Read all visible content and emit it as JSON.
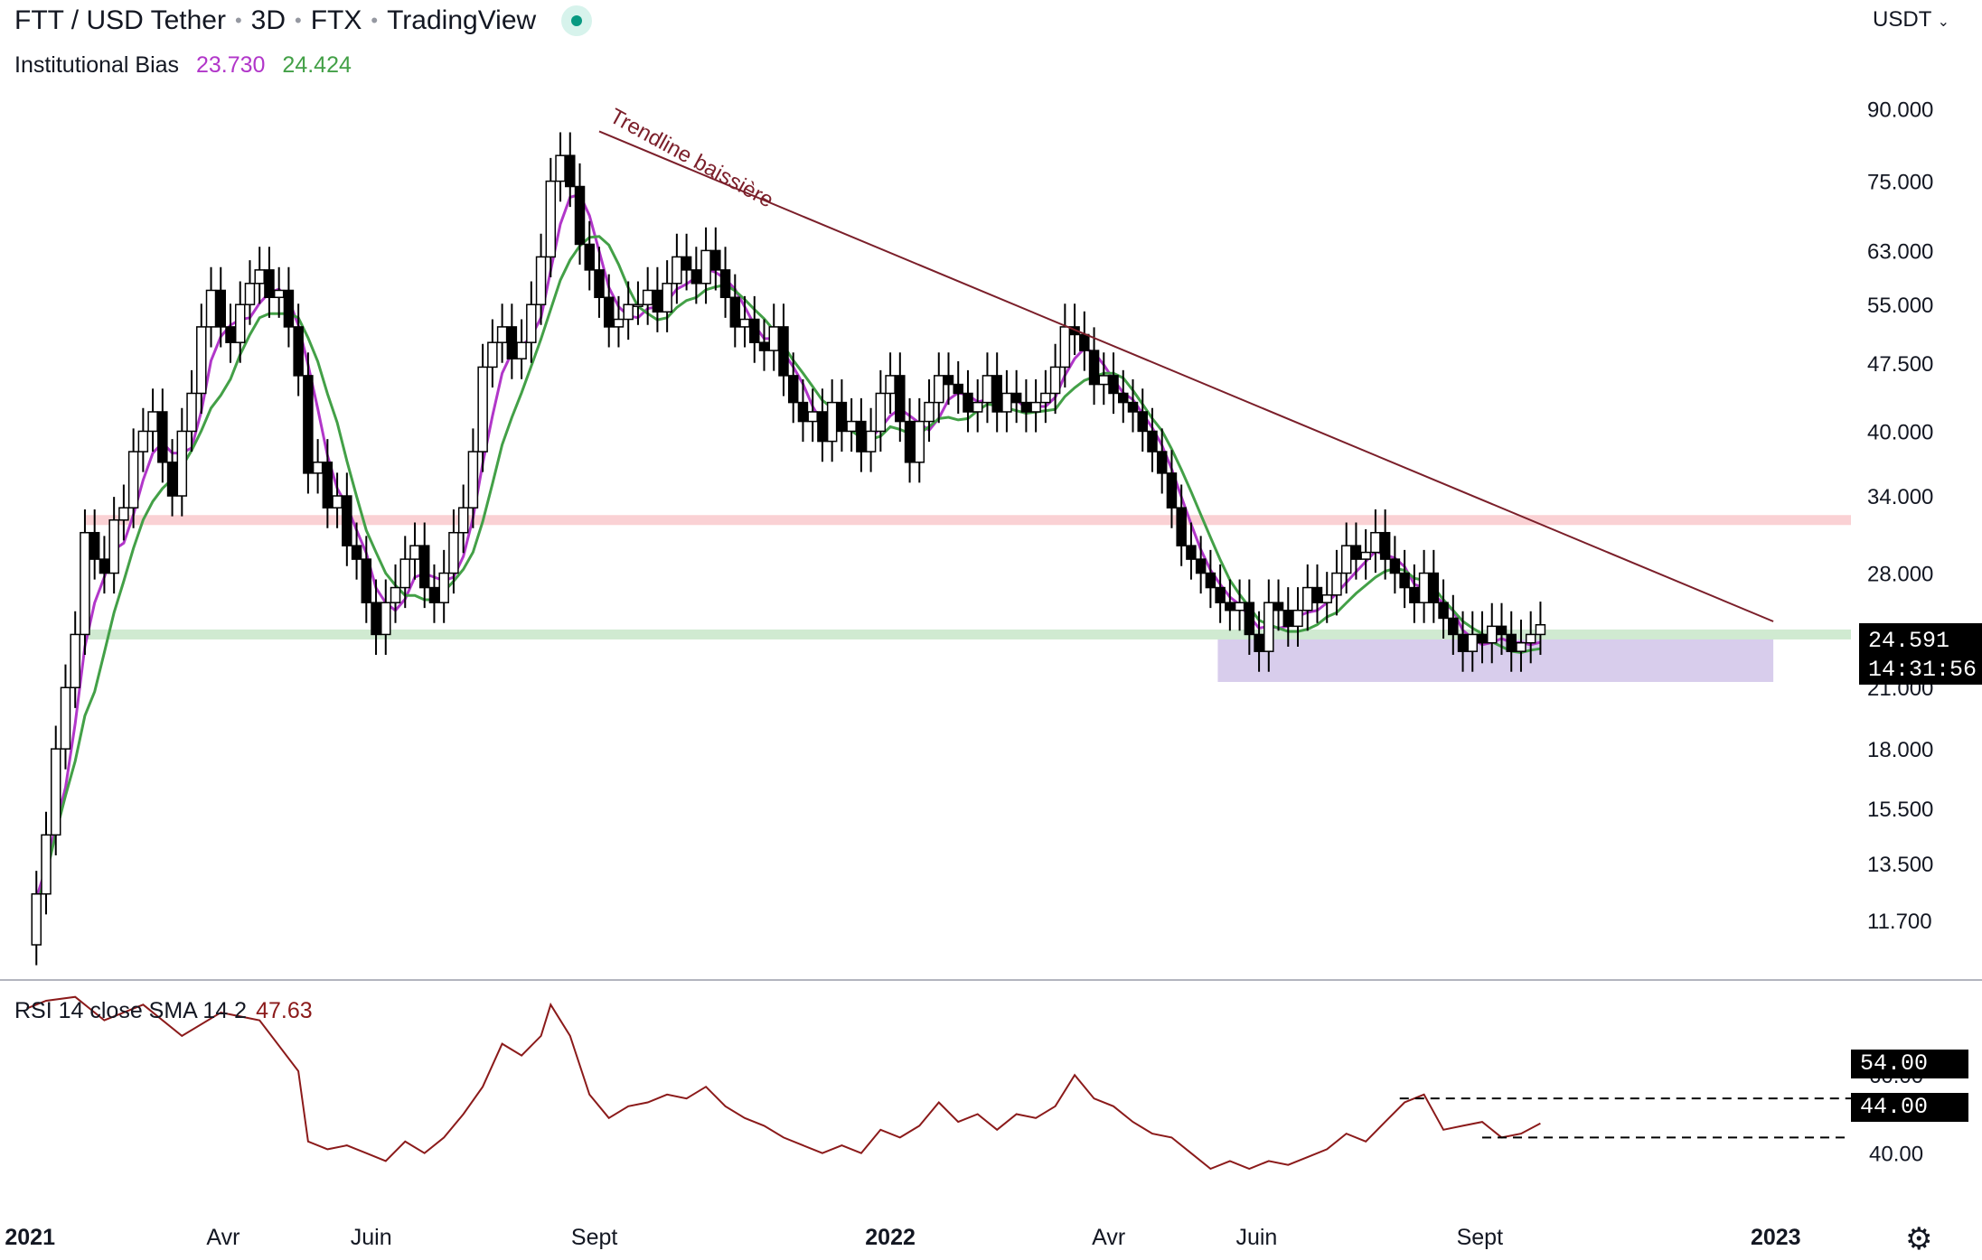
{
  "header": {
    "symbol": "FTT / USD Tether",
    "interval": "3D",
    "exchange": "FTX",
    "source": "TradingView",
    "currency": "USDT"
  },
  "indicator": {
    "name": "Institutional Bias",
    "value1": "23.730",
    "value2": "24.424",
    "color1": "#b136c9",
    "color2": "#43a047"
  },
  "rsi": {
    "label": "RSI 14 close SMA 14 2",
    "value": "47.63",
    "ticks": [
      "60.00",
      "40.00"
    ],
    "levels": [
      "54.00",
      "44.00"
    ],
    "color": "#8b1a1a"
  },
  "price_tag": {
    "price": "24.591",
    "countdown": "14:31:56"
  },
  "annotation": {
    "trendline_label": "Trendline baissière"
  },
  "icons": {
    "settings": "gear-icon"
  },
  "chart_data": {
    "type": "candlestick",
    "title": "FTT / USD Tether · 3D · FTX",
    "y_scale": "log",
    "ylim": [
      10.3,
      108
    ],
    "y_ticks": [
      "90.000",
      "75.000",
      "63.000",
      "55.000",
      "47.500",
      "40.000",
      "34.000",
      "28.000",
      "21.000",
      "18.000",
      "15.500",
      "13.500",
      "11.700"
    ],
    "x_ticks": [
      "2021",
      "Avr",
      "Juin",
      "Sept",
      "2022",
      "Avr",
      "Juin",
      "Sept",
      "2023"
    ],
    "x_tick_dates": [
      "2021-01-01",
      "2021-04-01",
      "2021-06-01",
      "2021-09-01",
      "2022-01-01",
      "2022-04-01",
      "2022-06-01",
      "2022-09-01",
      "2023-01-01"
    ],
    "xlim": [
      "2020-12-30",
      "2023-02-01"
    ],
    "series_path": [
      [
        "2021-01-10",
        11
      ],
      [
        "2021-01-14",
        12.5
      ],
      [
        "2021-01-18",
        14.5
      ],
      [
        "2021-01-22",
        18
      ],
      [
        "2021-01-26",
        21
      ],
      [
        "2021-01-30",
        24
      ],
      [
        "2021-02-03",
        31
      ],
      [
        "2021-02-07",
        29
      ],
      [
        "2021-02-11",
        28
      ],
      [
        "2021-02-15",
        32
      ],
      [
        "2021-02-19",
        33
      ],
      [
        "2021-02-23",
        38
      ],
      [
        "2021-02-27",
        40
      ],
      [
        "2021-03-03",
        42
      ],
      [
        "2021-03-07",
        37
      ],
      [
        "2021-03-11",
        34
      ],
      [
        "2021-03-15",
        40
      ],
      [
        "2021-03-19",
        44
      ],
      [
        "2021-03-23",
        52
      ],
      [
        "2021-03-27",
        57
      ],
      [
        "2021-03-31",
        52
      ],
      [
        "2021-04-04",
        50
      ],
      [
        "2021-04-08",
        55
      ],
      [
        "2021-04-12",
        58
      ],
      [
        "2021-04-16",
        60
      ],
      [
        "2021-04-20",
        56
      ],
      [
        "2021-04-24",
        57
      ],
      [
        "2021-04-28",
        52
      ],
      [
        "2021-05-02",
        46
      ],
      [
        "2021-05-06",
        36
      ],
      [
        "2021-05-10",
        37
      ],
      [
        "2021-05-14",
        33
      ],
      [
        "2021-05-18",
        34
      ],
      [
        "2021-05-22",
        30
      ],
      [
        "2021-05-26",
        29
      ],
      [
        "2021-05-30",
        26
      ],
      [
        "2021-06-03",
        24
      ],
      [
        "2021-06-07",
        26
      ],
      [
        "2021-06-11",
        27
      ],
      [
        "2021-06-15",
        29
      ],
      [
        "2021-06-19",
        30
      ],
      [
        "2021-06-23",
        27
      ],
      [
        "2021-06-27",
        26
      ],
      [
        "2021-07-01",
        28
      ],
      [
        "2021-07-05",
        31
      ],
      [
        "2021-07-09",
        33
      ],
      [
        "2021-07-13",
        38
      ],
      [
        "2021-07-17",
        47
      ],
      [
        "2021-07-21",
        50
      ],
      [
        "2021-07-25",
        52
      ],
      [
        "2021-07-29",
        48
      ],
      [
        "2021-08-02",
        50
      ],
      [
        "2021-08-06",
        55
      ],
      [
        "2021-08-10",
        62
      ],
      [
        "2021-08-14",
        75
      ],
      [
        "2021-08-18",
        80
      ],
      [
        "2021-08-22",
        74
      ],
      [
        "2021-08-26",
        64
      ],
      [
        "2021-08-30",
        60
      ],
      [
        "2021-09-03",
        56
      ],
      [
        "2021-09-07",
        52
      ],
      [
        "2021-09-11",
        53
      ],
      [
        "2021-09-15",
        55
      ],
      [
        "2021-09-19",
        55
      ],
      [
        "2021-09-23",
        57
      ],
      [
        "2021-09-27",
        54
      ],
      [
        "2021-10-01",
        58
      ],
      [
        "2021-10-05",
        62
      ],
      [
        "2021-10-09",
        60
      ],
      [
        "2021-10-13",
        58
      ],
      [
        "2021-10-17",
        63
      ],
      [
        "2021-10-21",
        60
      ],
      [
        "2021-10-25",
        56
      ],
      [
        "2021-10-29",
        52
      ],
      [
        "2021-11-02",
        53
      ],
      [
        "2021-11-06",
        50
      ],
      [
        "2021-11-10",
        49
      ],
      [
        "2021-11-14",
        52
      ],
      [
        "2021-11-18",
        46
      ],
      [
        "2021-11-22",
        43
      ],
      [
        "2021-11-26",
        41
      ],
      [
        "2021-11-30",
        42
      ],
      [
        "2021-12-04",
        39
      ],
      [
        "2021-12-08",
        43
      ],
      [
        "2021-12-12",
        40
      ],
      [
        "2021-12-16",
        41
      ],
      [
        "2021-12-20",
        38
      ],
      [
        "2021-12-24",
        40
      ],
      [
        "2021-12-28",
        44
      ],
      [
        "2022-01-01",
        46
      ],
      [
        "2022-01-05",
        41
      ],
      [
        "2022-01-09",
        37
      ],
      [
        "2022-01-13",
        41
      ],
      [
        "2022-01-17",
        43
      ],
      [
        "2022-01-21",
        46
      ],
      [
        "2022-01-25",
        45
      ],
      [
        "2022-01-29",
        44
      ],
      [
        "2022-02-02",
        42
      ],
      [
        "2022-02-06",
        43
      ],
      [
        "2022-02-10",
        46
      ],
      [
        "2022-02-14",
        42
      ],
      [
        "2022-02-18",
        44
      ],
      [
        "2022-02-22",
        43
      ],
      [
        "2022-02-26",
        42
      ],
      [
        "2022-03-02",
        43
      ],
      [
        "2022-03-06",
        44
      ],
      [
        "2022-03-10",
        47
      ],
      [
        "2022-03-14",
        52
      ],
      [
        "2022-03-18",
        51
      ],
      [
        "2022-03-22",
        49
      ],
      [
        "2022-03-26",
        45
      ],
      [
        "2022-03-30",
        46
      ],
      [
        "2022-04-03",
        44
      ],
      [
        "2022-04-07",
        43
      ],
      [
        "2022-04-11",
        42
      ],
      [
        "2022-04-15",
        40
      ],
      [
        "2022-04-19",
        38
      ],
      [
        "2022-04-23",
        36
      ],
      [
        "2022-04-27",
        33
      ],
      [
        "2022-05-01",
        30
      ],
      [
        "2022-05-05",
        29
      ],
      [
        "2022-05-09",
        28
      ],
      [
        "2022-05-13",
        27
      ],
      [
        "2022-05-17",
        26
      ],
      [
        "2022-05-21",
        25.5
      ],
      [
        "2022-05-25",
        26
      ],
      [
        "2022-05-29",
        24
      ],
      [
        "2022-06-02",
        23
      ],
      [
        "2022-06-06",
        26
      ],
      [
        "2022-06-10",
        25.5
      ],
      [
        "2022-06-14",
        24.5
      ],
      [
        "2022-06-18",
        25.5
      ],
      [
        "2022-06-22",
        27
      ],
      [
        "2022-06-26",
        26
      ],
      [
        "2022-06-30",
        26.5
      ],
      [
        "2022-07-04",
        28
      ],
      [
        "2022-07-08",
        30
      ],
      [
        "2022-07-12",
        29
      ],
      [
        "2022-07-16",
        29.5
      ],
      [
        "2022-07-20",
        31
      ],
      [
        "2022-07-24",
        29
      ],
      [
        "2022-07-28",
        28
      ],
      [
        "2022-08-01",
        27
      ],
      [
        "2022-08-05",
        26
      ],
      [
        "2022-08-09",
        28
      ],
      [
        "2022-08-13",
        26
      ],
      [
        "2022-08-17",
        25
      ],
      [
        "2022-08-21",
        24
      ],
      [
        "2022-08-25",
        23
      ],
      [
        "2022-08-29",
        24
      ],
      [
        "2022-09-02",
        23.5
      ],
      [
        "2022-09-06",
        24.5
      ],
      [
        "2022-09-10",
        24
      ],
      [
        "2022-09-14",
        23
      ],
      [
        "2022-09-18",
        23.5
      ],
      [
        "2022-09-22",
        24
      ],
      [
        "2022-09-26",
        24.59
      ]
    ],
    "series": [
      {
        "name": "23.730",
        "color": "#b136c9",
        "smooth": 3
      },
      {
        "name": "24.424",
        "color": "#43a047",
        "smooth": 6
      }
    ],
    "levels": [
      {
        "kind": "resistance-zone",
        "y": [
          31.6,
          32.4
        ],
        "color": "#f9c9cc"
      },
      {
        "kind": "support-zone",
        "y": [
          23.7,
          24.3
        ],
        "color": "#c8e6c9"
      },
      {
        "kind": "demand-zone",
        "y": [
          21.3,
          23.7
        ],
        "x": [
          "2022-05-16",
          "2022-12-31"
        ],
        "color": "#d1c4e9"
      }
    ],
    "trendline": {
      "from": [
        "2021-09-03",
        85
      ],
      "to": [
        "2022-12-31",
        24.8
      ],
      "color": "#7b1f2a"
    },
    "rsi_series": [
      [
        "2021-01-10",
        77
      ],
      [
        "2021-01-18",
        79
      ],
      [
        "2021-01-30",
        80
      ],
      [
        "2021-02-11",
        74
      ],
      [
        "2021-02-27",
        78
      ],
      [
        "2021-03-15",
        70
      ],
      [
        "2021-03-31",
        76
      ],
      [
        "2021-04-16",
        74
      ],
      [
        "2021-05-02",
        61
      ],
      [
        "2021-05-06",
        43
      ],
      [
        "2021-05-14",
        41
      ],
      [
        "2021-05-22",
        42
      ],
      [
        "2021-05-30",
        40
      ],
      [
        "2021-06-07",
        38
      ],
      [
        "2021-06-15",
        43
      ],
      [
        "2021-06-23",
        40
      ],
      [
        "2021-07-01",
        44
      ],
      [
        "2021-07-09",
        50
      ],
      [
        "2021-07-17",
        57
      ],
      [
        "2021-07-25",
        68
      ],
      [
        "2021-08-02",
        65
      ],
      [
        "2021-08-10",
        70
      ],
      [
        "2021-08-14",
        78
      ],
      [
        "2021-08-22",
        70
      ],
      [
        "2021-08-30",
        55
      ],
      [
        "2021-09-07",
        49
      ],
      [
        "2021-09-15",
        52
      ],
      [
        "2021-09-23",
        53
      ],
      [
        "2021-10-01",
        55
      ],
      [
        "2021-10-09",
        54
      ],
      [
        "2021-10-17",
        57
      ],
      [
        "2021-10-25",
        52
      ],
      [
        "2021-11-02",
        49
      ],
      [
        "2021-11-10",
        47
      ],
      [
        "2021-11-18",
        44
      ],
      [
        "2021-11-26",
        42
      ],
      [
        "2021-12-04",
        40
      ],
      [
        "2021-12-12",
        42
      ],
      [
        "2021-12-20",
        40
      ],
      [
        "2021-12-28",
        46
      ],
      [
        "2022-01-05",
        44
      ],
      [
        "2022-01-13",
        47
      ],
      [
        "2022-01-21",
        53
      ],
      [
        "2022-01-29",
        48
      ],
      [
        "2022-02-06",
        50
      ],
      [
        "2022-02-14",
        46
      ],
      [
        "2022-02-22",
        50
      ],
      [
        "2022-03-02",
        49
      ],
      [
        "2022-03-10",
        52
      ],
      [
        "2022-03-18",
        60
      ],
      [
        "2022-03-26",
        54
      ],
      [
        "2022-04-03",
        52
      ],
      [
        "2022-04-11",
        48
      ],
      [
        "2022-04-19",
        45
      ],
      [
        "2022-04-27",
        44
      ],
      [
        "2022-05-05",
        40
      ],
      [
        "2022-05-13",
        36
      ],
      [
        "2022-05-21",
        38
      ],
      [
        "2022-05-29",
        36
      ],
      [
        "2022-06-06",
        38
      ],
      [
        "2022-06-14",
        37
      ],
      [
        "2022-06-22",
        39
      ],
      [
        "2022-06-30",
        41
      ],
      [
        "2022-07-08",
        45
      ],
      [
        "2022-07-16",
        43
      ],
      [
        "2022-07-24",
        48
      ],
      [
        "2022-08-01",
        53
      ],
      [
        "2022-08-09",
        55
      ],
      [
        "2022-08-17",
        46
      ],
      [
        "2022-08-25",
        47
      ],
      [
        "2022-09-02",
        48
      ],
      [
        "2022-09-10",
        44
      ],
      [
        "2022-09-18",
        45
      ],
      [
        "2022-09-26",
        47.63
      ]
    ],
    "rsi_ylim": [
      30,
      82
    ]
  }
}
